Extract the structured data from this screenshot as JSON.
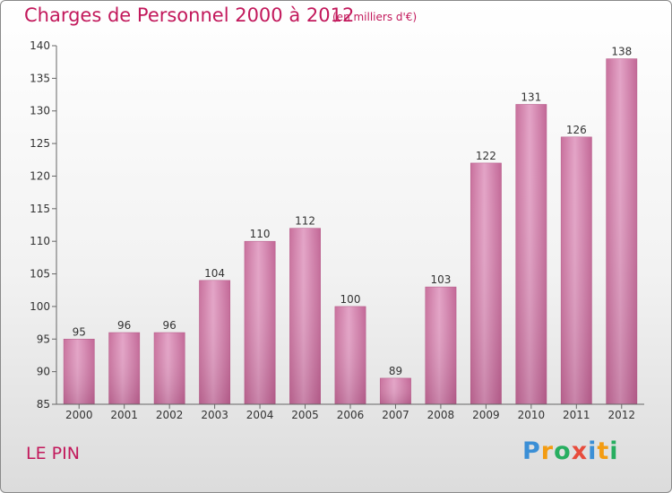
{
  "header": {
    "title": "Charges de Personnel 2000 à 2012",
    "subtitle": "(en milliers d'€)"
  },
  "footer": {
    "city": "LE PIN",
    "logo": {
      "letters": [
        {
          "char": "P",
          "color": "#3b8fd6"
        },
        {
          "char": "r",
          "color": "#f39c12"
        },
        {
          "char": "o",
          "color": "#27ae60"
        },
        {
          "char": "x",
          "color": "#e74c3c"
        },
        {
          "char": "i",
          "color": "#3b8fd6"
        },
        {
          "char": "t",
          "color": "#f39c12"
        },
        {
          "char": "i",
          "color": "#27ae60"
        }
      ]
    }
  },
  "chart_data": {
    "type": "bar",
    "title": "Charges de Personnel 2000 à 2012",
    "subtitle": "(en milliers d'€)",
    "categories": [
      "2000",
      "2001",
      "2002",
      "2003",
      "2004",
      "2005",
      "2006",
      "2007",
      "2008",
      "2009",
      "2010",
      "2011",
      "2012"
    ],
    "values": [
      95,
      96,
      96,
      104,
      110,
      112,
      100,
      89,
      103,
      122,
      131,
      126,
      138
    ],
    "ylim": [
      85,
      140
    ],
    "yticks": [
      85,
      90,
      95,
      100,
      105,
      110,
      115,
      120,
      125,
      130,
      135,
      140
    ],
    "grid": false,
    "bar_color": "#d67aa7",
    "bar_highlight": "#e8a9c9",
    "axis_color": "#666666"
  }
}
